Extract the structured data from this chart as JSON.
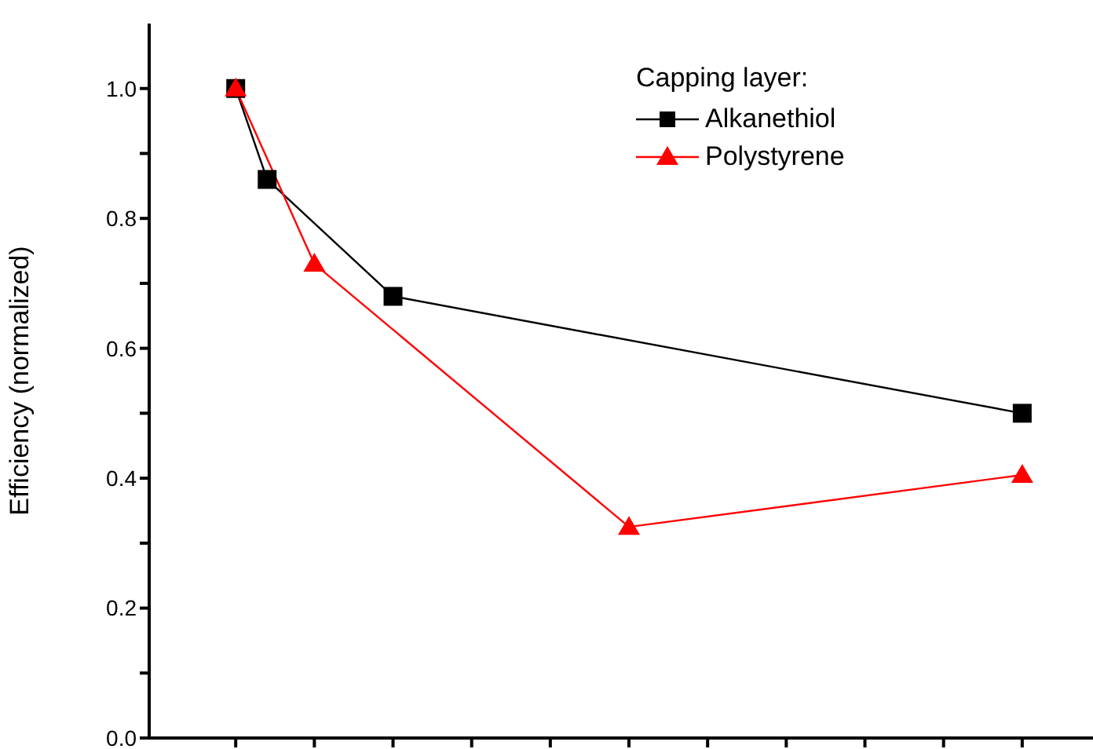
{
  "chart_data": {
    "type": "line",
    "ylabel": "Efficiency (normalized)",
    "legend_title": "Capping layer:",
    "legend": "top right",
    "grid": false,
    "tick_labels": "y",
    "categories": [
      null,
      null,
      null,
      null,
      null,
      null,
      null,
      null,
      null,
      null,
      null,
      null,
      null,
      null,
      null,
      null,
      null,
      null,
      null,
      null,
      null,
      null,
      null,
      null,
      null,
      null,
      null,
      null,
      null,
      null,
      null,
      null,
      null,
      null,
      null,
      null,
      null,
      null,
      null,
      null,
      null,
      null,
      null,
      null,
      null,
      null,
      null,
      null,
      null,
      null,
      null,
      null,
      null,
      null,
      null,
      null,
      null,
      null,
      null,
      null
    ],
    "ylim": [
      0,
      1.1
    ],
    "yticks": [
      {
        "value": 0,
        "label": "0.0"
      },
      {
        "value": 0.1,
        "label": null
      },
      {
        "value": 0.2,
        "label": "0.2"
      },
      {
        "value": 0.3,
        "label": null
      },
      {
        "value": 0.4,
        "label": "0.4"
      },
      {
        "value": 0.5,
        "label": null
      },
      {
        "value": 0.6,
        "label": "0.6"
      },
      {
        "value": 0.7,
        "label": null
      },
      {
        "value": 0.8,
        "label": "0.8"
      },
      {
        "value": 0.9,
        "label": null
      },
      {
        "value": 1,
        "label": "1.0"
      }
    ],
    "series": [
      {
        "name": "Alkanethiol",
        "color": "#000000",
        "marker": "square",
        "values": [
          null,
          null,
          null,
          null,
          null,
          1.0,
          null,
          0.86,
          null,
          null,
          null,
          null,
          null,
          null,
          null,
          0.68,
          null,
          null,
          null,
          null,
          null,
          null,
          null,
          null,
          null,
          null,
          null,
          null,
          null,
          null,
          null,
          null,
          null,
          null,
          null,
          null,
          null,
          null,
          null,
          null,
          null,
          null,
          null,
          null,
          null,
          null,
          null,
          null,
          null,
          null,
          null,
          null,
          null,
          null,
          null,
          0.5,
          null,
          null,
          null,
          null
        ]
      },
      {
        "name": "Polystyrene",
        "color": "#ff0000",
        "marker": "triangle",
        "values": [
          null,
          null,
          null,
          null,
          null,
          1.0,
          null,
          null,
          null,
          null,
          0.73,
          null,
          null,
          null,
          null,
          null,
          null,
          null,
          null,
          null,
          null,
          null,
          null,
          null,
          null,
          null,
          null,
          null,
          null,
          null,
          0.325,
          null,
          null,
          null,
          null,
          null,
          null,
          null,
          null,
          null,
          null,
          null,
          null,
          null,
          null,
          null,
          null,
          null,
          null,
          null,
          null,
          null,
          null,
          null,
          null,
          0.405,
          null,
          null,
          null,
          null
        ]
      }
    ]
  }
}
